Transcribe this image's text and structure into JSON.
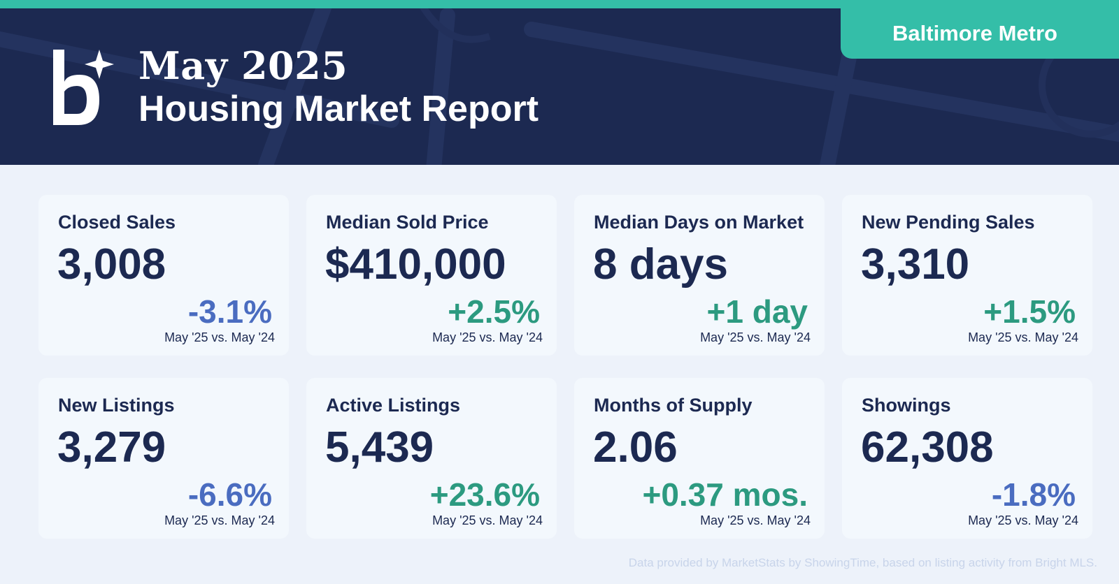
{
  "header": {
    "month_title": "May 2025",
    "report_title": "Housing Market Report",
    "region": "Baltimore Metro",
    "logo": "bright-logo-icon"
  },
  "colors": {
    "navy": "#1c2951",
    "teal": "#34bea8",
    "negative": "#4a6cc0",
    "positive": "#2c9a80",
    "card_bg": "#f3f8fd",
    "page_bg": "#edf2fa"
  },
  "metrics": [
    {
      "label": "Closed Sales",
      "value": "3,008",
      "change": "-3.1%",
      "trend": "negative",
      "compare": "May '25 vs. May '24"
    },
    {
      "label": "Median Sold Price",
      "value": "$410,000",
      "change": "+2.5%",
      "trend": "positive",
      "compare": "May '25 vs. May '24"
    },
    {
      "label": "Median Days on Market",
      "value": "8 days",
      "change": "+1 day",
      "trend": "positive",
      "compare": "May '25 vs. May '24"
    },
    {
      "label": "New Pending Sales",
      "value": "3,310",
      "change": "+1.5%",
      "trend": "positive",
      "compare": "May '25 vs. May '24"
    },
    {
      "label": "New Listings",
      "value": "3,279",
      "change": "-6.6%",
      "trend": "negative",
      "compare": "May '25 vs. May '24"
    },
    {
      "label": "Active Listings",
      "value": "5,439",
      "change": "+23.6%",
      "trend": "positive",
      "compare": "May '25 vs. May '24"
    },
    {
      "label": "Months of Supply",
      "value": "2.06",
      "change": "+0.37 mos.",
      "trend": "positive",
      "compare": "May '25 vs. May '24"
    },
    {
      "label": "Showings",
      "value": "62,308",
      "change": "-1.8%",
      "trend": "negative",
      "compare": "May '25 vs. May '24"
    }
  ],
  "footer": {
    "source_note": "Data provided by MarketStats by ShowingTime, based on listing activity from Bright MLS."
  }
}
